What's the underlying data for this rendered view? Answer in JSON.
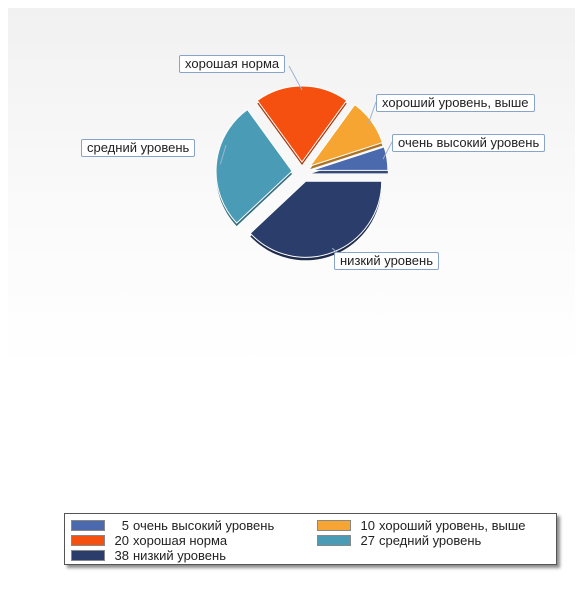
{
  "chart_data": {
    "type": "pie",
    "series": [
      {
        "name": "очень высокий уровень",
        "value": 5,
        "color": "#4a6aad",
        "callout": "очень высокий уровень",
        "legend_value": "5",
        "legend_label": "очень высокий уровень"
      },
      {
        "name": "хороший уровень, выше",
        "value": 10,
        "color": "#f7a532",
        "callout": "хороший уровень, выше",
        "legend_value": "10",
        "legend_label": "хороший уровень, выше"
      },
      {
        "name": "хорошая норма",
        "value": 20,
        "color": "#f5500f",
        "callout": "хорошая норма",
        "legend_value": "20",
        "legend_label": "хорошая норма"
      },
      {
        "name": "средний уровень",
        "value": 27,
        "color": "#4a9bb5",
        "callout": "средний уровень",
        "legend_value": "27",
        "legend_label": "средний уровень"
      },
      {
        "name": "низкий уровень",
        "value": 38,
        "color": "#2b3e6b",
        "callout": "низкий уровень",
        "legend_value": "38",
        "legend_label": "низкий уровень"
      }
    ],
    "legend": {
      "placement": "bottom",
      "columns": 2
    }
  }
}
